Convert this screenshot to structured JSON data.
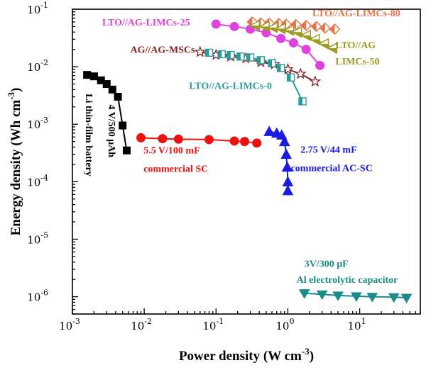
{
  "chart_data": {
    "type": "scatter",
    "xlabel": "Power density (W cm",
    "xlabel_sup": "-3",
    "xlabel_close": ")",
    "ylabel": "Energy density (Wh cm",
    "ylabel_sup": "-3",
    "ylabel_close": ")",
    "xscale": "log",
    "yscale": "log",
    "xlim": [
      0.001,
      70
    ],
    "ylim": [
      5e-07,
      0.1
    ],
    "x_ticks": [
      {
        "value": 0.001,
        "base": "10",
        "exp": "-3"
      },
      {
        "value": 0.01,
        "base": "10",
        "exp": "-2"
      },
      {
        "value": 0.1,
        "base": "10",
        "exp": "-1"
      },
      {
        "value": 1,
        "base": "10",
        "exp": "0"
      },
      {
        "value": 10,
        "base": "10",
        "exp": "1"
      }
    ],
    "y_ticks": [
      {
        "value": 0.1,
        "base": "10",
        "exp": "-1"
      },
      {
        "value": 0.01,
        "base": "10",
        "exp": "-2"
      },
      {
        "value": 0.001,
        "base": "10",
        "exp": "-3"
      },
      {
        "value": 0.0001,
        "base": "10",
        "exp": "-4"
      },
      {
        "value": 1e-05,
        "base": "10",
        "exp": "-5"
      },
      {
        "value": 1e-06,
        "base": "10",
        "exp": "-6"
      }
    ],
    "grid": false,
    "series": [
      {
        "name": "LTO//AG-LIMCs-80",
        "color": "#e8734a",
        "marker": "diamond",
        "line": true,
        "x": [
          0.32,
          0.42,
          0.55,
          0.75,
          0.95,
          1.3,
          1.8,
          2.5,
          3.3,
          4.5
        ],
        "y": [
          0.06,
          0.058,
          0.057,
          0.056,
          0.055,
          0.054,
          0.052,
          0.05,
          0.047,
          0.045
        ]
      },
      {
        "name": "LTO//AG-LIMCs-25",
        "color": "#e040e0",
        "marker": "circle",
        "line": true,
        "x": [
          0.1,
          0.18,
          0.3,
          0.5,
          0.8,
          1.2,
          1.8,
          2.8
        ],
        "y": [
          0.055,
          0.05,
          0.045,
          0.039,
          0.031,
          0.026,
          0.02,
          0.0105
        ]
      },
      {
        "name": "LTO//AG LIMCs-50",
        "color": "#9c9a20",
        "marker": "triangle-left",
        "line": true,
        "x": [
          0.35,
          0.48,
          0.62,
          0.8,
          1.05,
          1.35,
          1.8,
          2.4,
          3.2,
          4.2
        ],
        "y": [
          0.052,
          0.05,
          0.048,
          0.046,
          0.043,
          0.04,
          0.035,
          0.03,
          0.025,
          0.021
        ]
      },
      {
        "name": "AG//AG-MSCs",
        "color": "#8b2020",
        "marker": "star",
        "line": true,
        "x": [
          0.06,
          0.1,
          0.16,
          0.26,
          0.42,
          0.65,
          1.0,
          1.5,
          2.4
        ],
        "y": [
          0.018,
          0.016,
          0.015,
          0.014,
          0.012,
          0.011,
          0.009,
          0.0075,
          0.0055
        ]
      },
      {
        "name": "LTO//AG-LIMCs-0",
        "color": "#2a9a9a",
        "marker": "square-half",
        "line": true,
        "x": [
          0.08,
          0.12,
          0.16,
          0.22,
          0.3,
          0.42,
          0.6,
          0.8,
          1.1,
          1.6
        ],
        "y": [
          0.0175,
          0.0165,
          0.016,
          0.015,
          0.0145,
          0.013,
          0.0115,
          0.0095,
          0.0065,
          0.0025
        ]
      },
      {
        "name": "4 V/500 μAh Li thin-film battery",
        "color": "#000000",
        "marker": "square",
        "line": true,
        "x": [
          0.0016,
          0.002,
          0.0025,
          0.003,
          0.0036,
          0.0043,
          0.005,
          0.0057
        ],
        "y": [
          0.0072,
          0.0068,
          0.0058,
          0.005,
          0.004,
          0.003,
          0.00095,
          0.00035
        ]
      },
      {
        "name": "5.5 V/100 mF commercial SC",
        "color": "#ee1111",
        "marker": "circle",
        "line": true,
        "x": [
          0.009,
          0.018,
          0.03,
          0.08,
          0.18,
          0.25,
          0.37
        ],
        "y": [
          0.00058,
          0.00056,
          0.00055,
          0.00054,
          0.00051,
          0.0005,
          0.00047
        ]
      },
      {
        "name": "2.75 V/44 mF commercial AC-SC",
        "color": "#1a1ae0",
        "marker": "triangle-up",
        "line": true,
        "x": [
          0.55,
          0.7,
          0.82,
          0.9,
          0.95,
          0.98,
          1.0,
          1.0
        ],
        "y": [
          0.00075,
          0.0007,
          0.00065,
          0.0005,
          0.0003,
          0.00018,
          0.0001,
          7e-05
        ]
      },
      {
        "name": "3V/300 μF Al electrolytic capacitor",
        "color": "#1a8a8a",
        "marker": "triangle-down",
        "line": true,
        "x": [
          1.7,
          3.0,
          5.0,
          9.0,
          15,
          30,
          45
        ],
        "y": [
          1.15e-06,
          1.1e-06,
          1.05e-06,
          1.02e-06,
          1e-06,
          9.8e-07,
          9.6e-07
        ]
      }
    ],
    "annotations": [
      {
        "text": "LTO//AG-LIMCs-80",
        "color": "#e8734a",
        "x": 2.2,
        "y": 0.075,
        "rotate": 0,
        "anchor": "start"
      },
      {
        "text": "LTO//AG-LIMCs-25",
        "color": "#e040e0",
        "x": 0.0026,
        "y": 0.052,
        "rotate": 0,
        "anchor": "start"
      },
      {
        "text": "LTO//AG",
        "color": "#9c9a20",
        "x": 4.6,
        "y": 0.021,
        "rotate": 0,
        "anchor": "start"
      },
      {
        "text": "LIMCs-50",
        "color": "#9c9a20",
        "x": 4.6,
        "y": 0.011,
        "rotate": 0,
        "anchor": "start"
      },
      {
        "text": "AG//AG-MSCs",
        "color": "#8b2020",
        "x": 0.0064,
        "y": 0.0175,
        "rotate": 0,
        "anchor": "start"
      },
      {
        "text": "LTO//AG-LIMCs-0",
        "color": "#2a9a9a",
        "x": 0.042,
        "y": 0.0041,
        "rotate": 0,
        "anchor": "start"
      },
      {
        "text": "Li thin-film battery",
        "color": "#000000",
        "x": 0.00155,
        "y": 0.0034,
        "rotate": 90,
        "anchor": "start"
      },
      {
        "text": "4 V/500 μAh",
        "color": "#000000",
        "x": 0.0032,
        "y": 0.0022,
        "rotate": 90,
        "anchor": "start"
      },
      {
        "text": "5.5 V/100 mF",
        "color": "#ee1111",
        "x": 0.0098,
        "y": 0.00031,
        "rotate": 0,
        "anchor": "start"
      },
      {
        "text": "commercial SC",
        "color": "#ee1111",
        "x": 0.0098,
        "y": 0.000148,
        "rotate": 0,
        "anchor": "start"
      },
      {
        "text": "2.75 V/44 mF",
        "color": "#1a1ae0",
        "x": 1.5,
        "y": 0.00032,
        "rotate": 0,
        "anchor": "start"
      },
      {
        "text": "commercial AC-SC",
        "color": "#1a1ae0",
        "x": 1.1,
        "y": 0.000153,
        "rotate": 0,
        "anchor": "start"
      },
      {
        "text": "3V/300 μF",
        "color": "#1a8a8a",
        "x": 1.7,
        "y": 3.3e-06,
        "rotate": 0,
        "anchor": "start"
      },
      {
        "text": "Al electrolytic capacitor",
        "color": "#1a8a8a",
        "x": 1.32,
        "y": 1.75e-06,
        "rotate": 0,
        "anchor": "start"
      }
    ]
  }
}
